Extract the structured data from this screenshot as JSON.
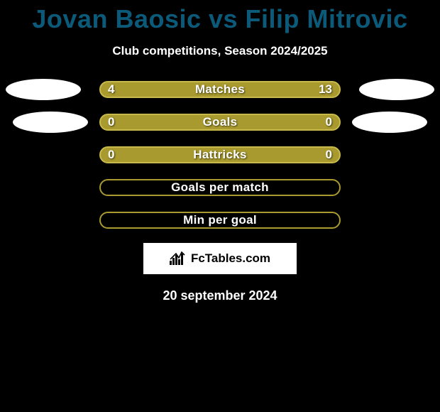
{
  "title": "Jovan Baosic vs Filip Mitrovic",
  "subtitle": "Club competitions, Season 2024/2025",
  "date": "20 september 2024",
  "brand": "FcTables.com",
  "colors": {
    "title": "#0b5a7a",
    "background": "#000000",
    "text": "#ffffff",
    "bar_fill": "#a89a2e",
    "bar_border_light": "#c8ba4a",
    "bar_empty_border": "#a89a2e",
    "photo_bg": "#ffffff"
  },
  "rows": [
    {
      "label": "Matches",
      "left_value": "4",
      "right_value": "13",
      "fill": "full",
      "bar_bg": "#a89a2e",
      "bar_border": "#c8ba4a",
      "has_photos": true,
      "photo_shift": false
    },
    {
      "label": "Goals",
      "left_value": "0",
      "right_value": "0",
      "fill": "full",
      "bar_bg": "#a89a2e",
      "bar_border": "#c8ba4a",
      "has_photos": true,
      "photo_shift": true
    },
    {
      "label": "Hattricks",
      "left_value": "0",
      "right_value": "0",
      "fill": "full",
      "bar_bg": "#a89a2e",
      "bar_border": "#c8ba4a",
      "has_photos": false
    },
    {
      "label": "Goals per match",
      "left_value": "",
      "right_value": "",
      "fill": "empty",
      "bar_bg": "transparent",
      "bar_border": "#a89a2e",
      "has_photos": false
    },
    {
      "label": "Min per goal",
      "left_value": "",
      "right_value": "",
      "fill": "empty",
      "bar_bg": "transparent",
      "bar_border": "#a89a2e",
      "has_photos": false
    }
  ]
}
